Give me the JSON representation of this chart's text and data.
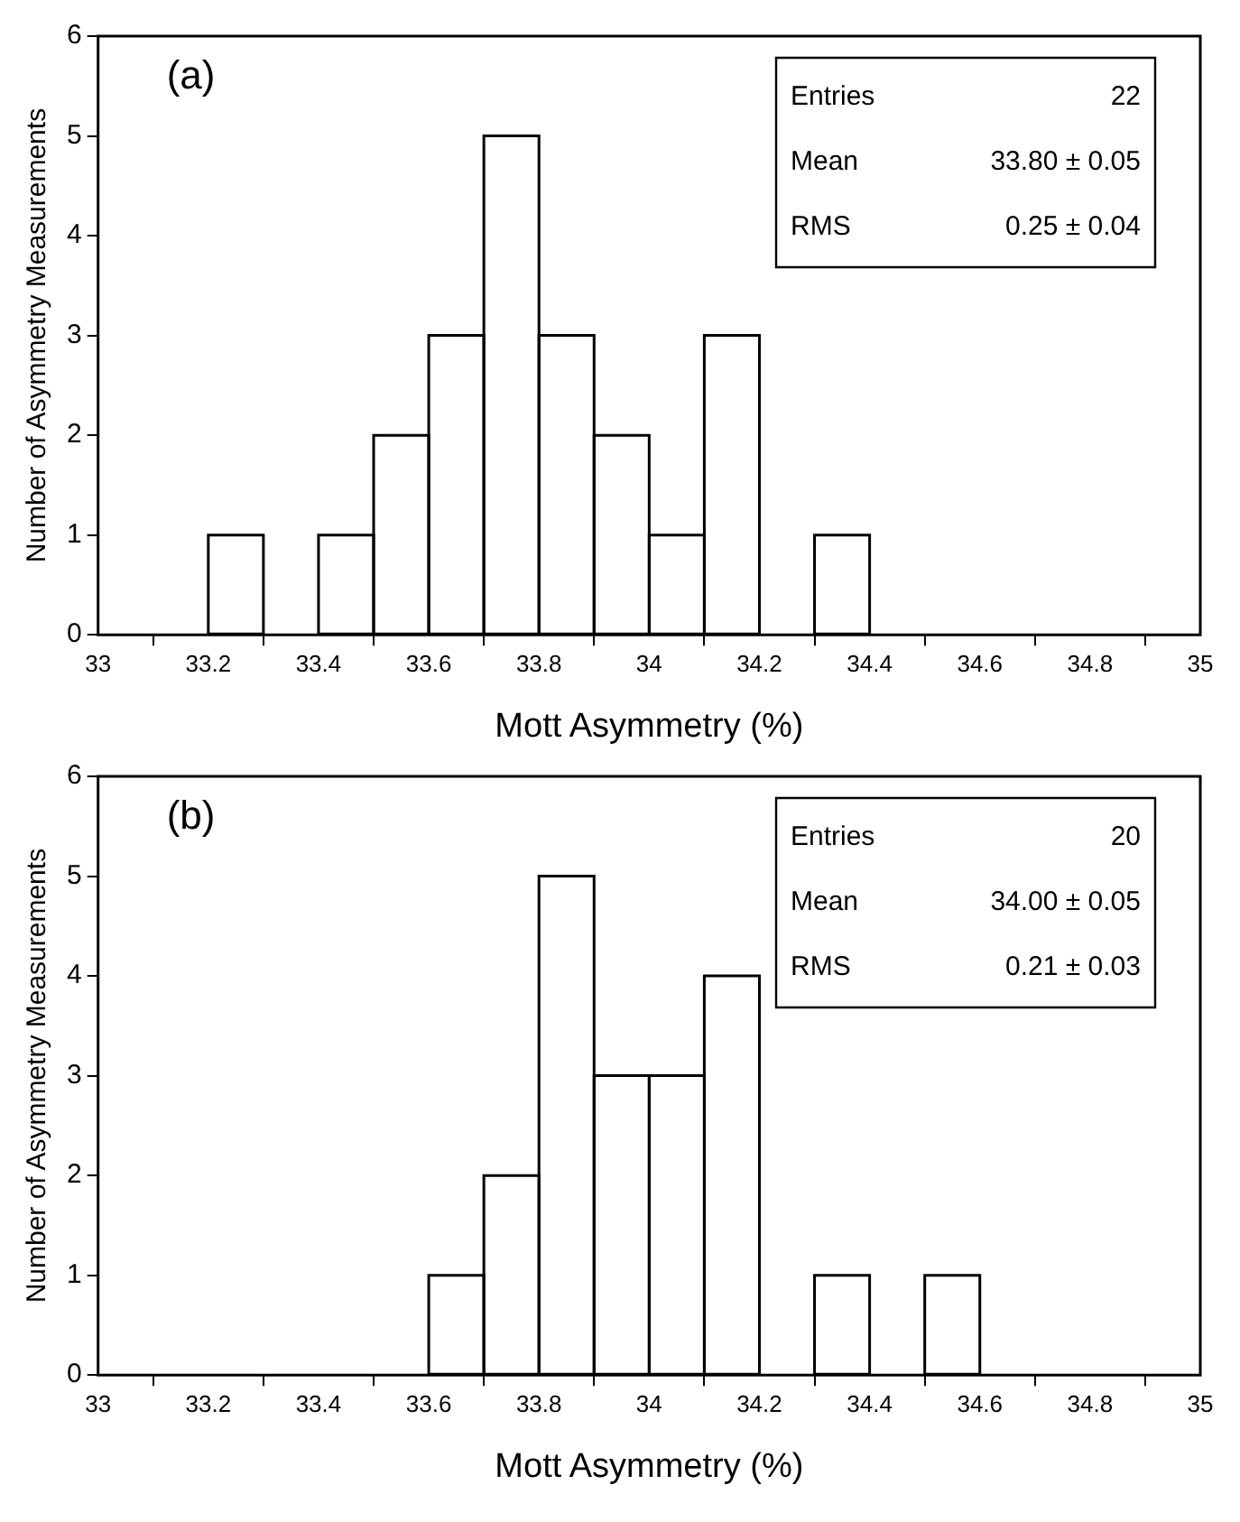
{
  "chart_data": [
    {
      "type": "histogram",
      "xlabel": "Mott Asymmetry (%)",
      "ylabel": "Number of Asymmetry Measurements",
      "bins": [
        33,
        33.1,
        33.2,
        33.3,
        33.4,
        33.5,
        33.6,
        33.7,
        33.8,
        33.9,
        34,
        34.1,
        34.2,
        34.3,
        34.4,
        34.5,
        34.6,
        34.7,
        34.8,
        34.9,
        35
      ],
      "values": [
        0,
        0,
        1,
        0,
        1,
        2,
        3,
        5,
        3,
        2,
        1,
        3,
        0,
        1,
        0,
        0,
        0,
        0,
        0,
        0
      ],
      "color": "#000000",
      "xlim": [
        33,
        35
      ],
      "xticks": [
        33,
        33.2,
        33.4,
        33.6,
        33.8,
        34,
        34.2,
        34.4,
        34.6,
        34.8,
        35
      ],
      "ylim": [
        0,
        6
      ],
      "yticks": [
        0,
        1,
        2,
        3,
        4,
        5,
        6
      ],
      "grid": false,
      "legend": false,
      "annotations": [
        "(a)",
        "Entries",
        "22",
        "Mean",
        "33.80 ± 0.05",
        "RMS",
        "0.25 ± 0.04"
      ]
    },
    {
      "type": "histogram",
      "xlabel": "Mott Asymmetry (%)",
      "ylabel": "Number of Asymmetry Measurements",
      "bins": [
        33,
        33.1,
        33.2,
        33.3,
        33.4,
        33.5,
        33.6,
        33.7,
        33.8,
        33.9,
        34,
        34.1,
        34.2,
        34.3,
        34.4,
        34.5,
        34.6,
        34.7,
        34.8,
        34.9,
        35
      ],
      "values": [
        0,
        0,
        0,
        0,
        0,
        0,
        1,
        2,
        5,
        3,
        3,
        4,
        0,
        1,
        0,
        1,
        0,
        0,
        0,
        0
      ],
      "color": "#000000",
      "xlim": [
        33,
        35
      ],
      "xticks": [
        33,
        33.2,
        33.4,
        33.6,
        33.8,
        34,
        34.2,
        34.4,
        34.6,
        34.8,
        35
      ],
      "ylim": [
        0,
        6
      ],
      "yticks": [
        0,
        1,
        2,
        3,
        4,
        5,
        6
      ],
      "grid": false,
      "legend": false,
      "annotations": [
        "(b)",
        "Entries",
        "20",
        "Mean",
        "34.00 ± 0.05",
        "RMS",
        "0.21 ± 0.03"
      ]
    }
  ]
}
